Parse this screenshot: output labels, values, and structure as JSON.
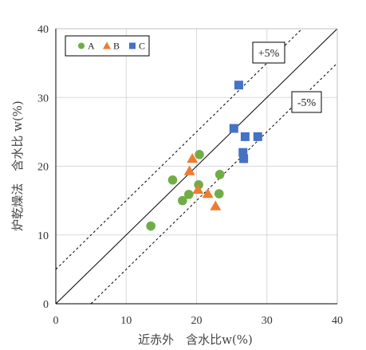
{
  "chart_data": {
    "type": "scatter",
    "xlabel": "近赤外　含水比w(%)",
    "ylabel": "炉乾燥法　含水比 w(%)",
    "xlim": [
      0,
      40
    ],
    "ylim": [
      0,
      40
    ],
    "xticks": [
      0,
      10,
      20,
      30,
      40
    ],
    "yticks": [
      0,
      10,
      20,
      30,
      40
    ],
    "grid": true,
    "legend_position": "top-left",
    "series": [
      {
        "name": "A",
        "marker": "circle",
        "color": "#70ad47",
        "points": [
          [
            13.5,
            11.3
          ],
          [
            16.6,
            18.0
          ],
          [
            18.0,
            15.0
          ],
          [
            18.9,
            15.9
          ],
          [
            20.3,
            17.3
          ],
          [
            20.4,
            21.7
          ],
          [
            23.2,
            16.0
          ],
          [
            23.3,
            18.8
          ]
        ]
      },
      {
        "name": "B",
        "marker": "triangle",
        "color": "#ed7d31",
        "points": [
          [
            19.0,
            19.3
          ],
          [
            19.4,
            21.1
          ],
          [
            20.2,
            16.6
          ],
          [
            21.6,
            16.0
          ],
          [
            22.7,
            14.2
          ]
        ]
      },
      {
        "name": "C",
        "marker": "square",
        "color": "#4472c4",
        "points": [
          [
            25.3,
            25.5
          ],
          [
            26.0,
            31.8
          ],
          [
            26.6,
            22.0
          ],
          [
            26.7,
            21.1
          ],
          [
            26.9,
            24.3
          ],
          [
            28.7,
            24.3
          ]
        ]
      }
    ],
    "reference_lines": [
      {
        "type": "identity",
        "style": "solid"
      },
      {
        "type": "offset",
        "offset": 5,
        "style": "dashed",
        "label": "+5%"
      },
      {
        "type": "offset",
        "offset": -5,
        "style": "dashed",
        "label": "-5%"
      }
    ],
    "annotations": [
      "+5%",
      "-5%"
    ]
  }
}
